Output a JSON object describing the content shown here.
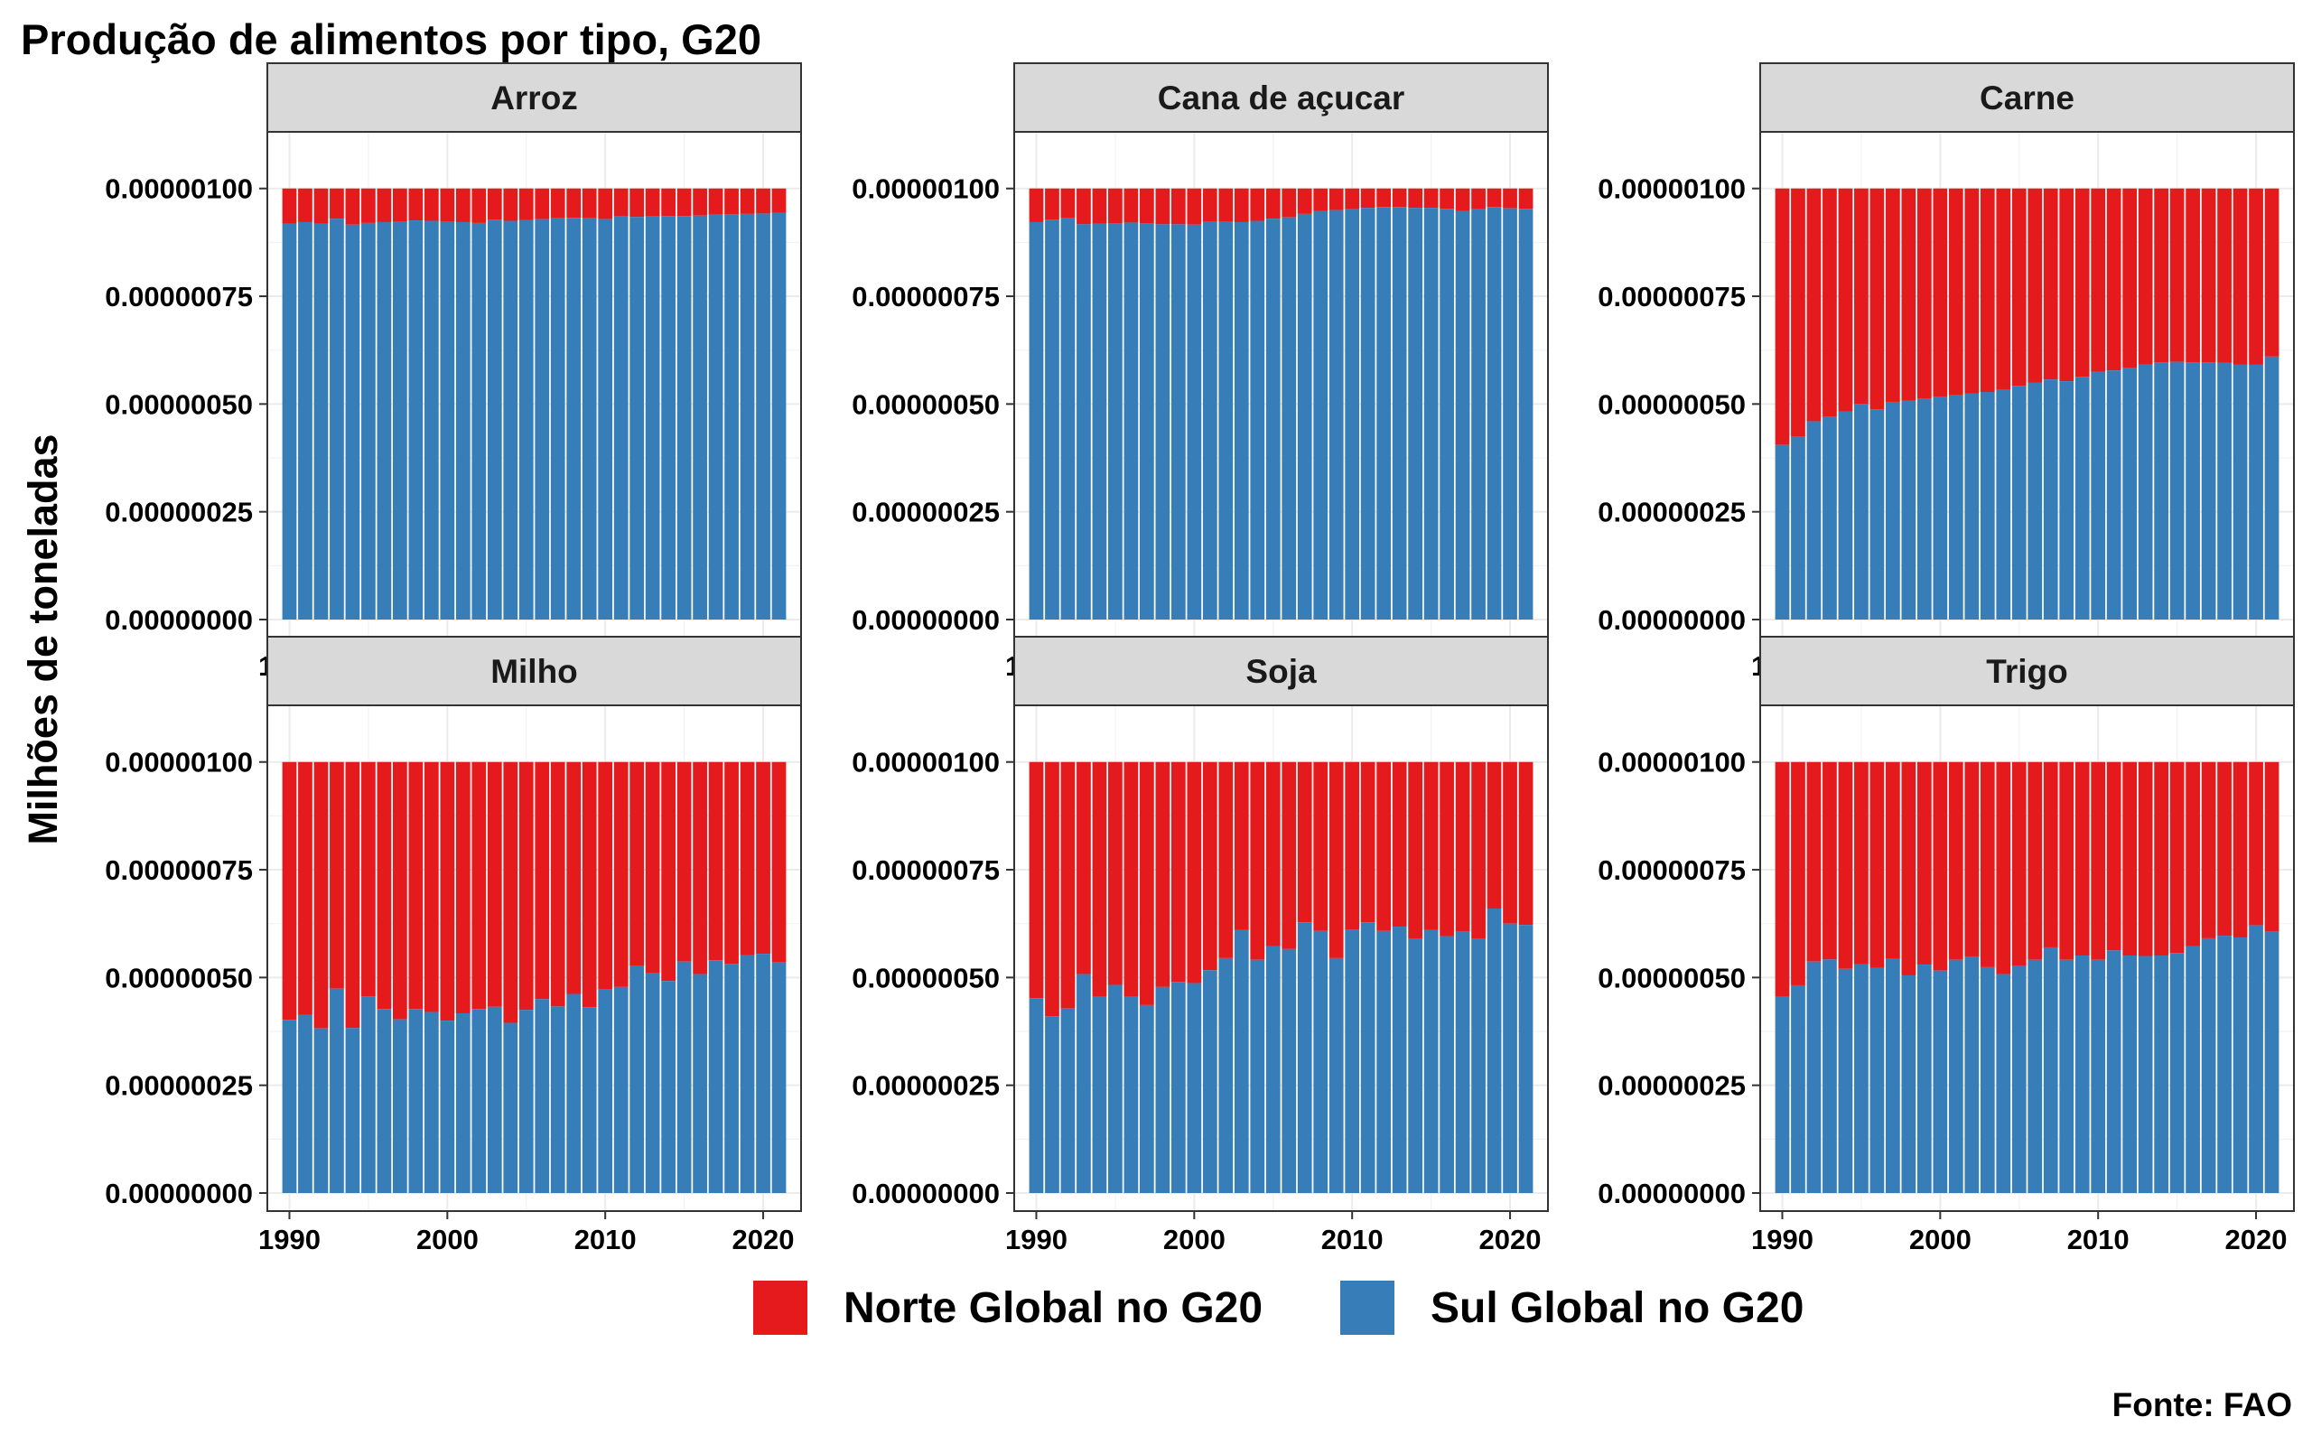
{
  "chart_data": {
    "type": "bar",
    "stacked": true,
    "title": "Produção de alimentos por tipo, G20",
    "ylabel": "Milhões de toneladas",
    "xlabel": "",
    "ylim": [
      0,
      1.1e-06
    ],
    "y_ticks": [
      "0.00000000",
      "0.00000025",
      "0.00000050",
      "0.00000075",
      "0.00000100"
    ],
    "x_ticks": [
      1990,
      2000,
      2010,
      2020
    ],
    "years": [
      1990,
      1991,
      1992,
      1993,
      1994,
      1995,
      1996,
      1997,
      1998,
      1999,
      2000,
      2001,
      2002,
      2003,
      2004,
      2005,
      2006,
      2007,
      2008,
      2009,
      2010,
      2011,
      2012,
      2013,
      2014,
      2015,
      2016,
      2017,
      2018,
      2019,
      2020,
      2021
    ],
    "grid": true,
    "legend_position": "bottom",
    "legend": [
      {
        "label": "Norte Global no G20",
        "color": "#E41A1C"
      },
      {
        "label": "Sul Global no G20",
        "color": "#377EB8"
      }
    ],
    "colors": {
      "norte": "#E41A1C",
      "sul": "#377EB8"
    },
    "note": "Fonte: FAO",
    "panels": [
      {
        "name": "Arroz",
        "total": [
          1e-06,
          1e-06,
          1e-06,
          1e-06,
          1e-06,
          1e-06,
          1e-06,
          1e-06,
          1e-06,
          1e-06,
          1e-06,
          1e-06,
          1e-06,
          1e-06,
          1e-06,
          1e-06,
          1e-06,
          1e-06,
          1e-06,
          1e-06,
          1e-06,
          1e-06,
          1e-06,
          1e-06,
          1e-06,
          1e-06,
          1e-06,
          1e-06,
          1e-06,
          1e-06,
          1e-06,
          1e-06
        ],
        "sul": [
          9.18e-07,
          9.22e-07,
          9.18e-07,
          9.3e-07,
          9.16e-07,
          9.2e-07,
          9.22e-07,
          9.24e-07,
          9.26e-07,
          9.25e-07,
          9.24e-07,
          9.22e-07,
          9.2e-07,
          9.28e-07,
          9.25e-07,
          9.27e-07,
          9.29e-07,
          9.31e-07,
          9.32e-07,
          9.31e-07,
          9.29e-07,
          9.35e-07,
          9.34e-07,
          9.35e-07,
          9.36e-07,
          9.36e-07,
          9.37e-07,
          9.39e-07,
          9.4e-07,
          9.41e-07,
          9.42e-07,
          9.44e-07
        ]
      },
      {
        "name": "Cana de açucar",
        "total": [
          1e-06,
          1e-06,
          1e-06,
          1e-06,
          1e-06,
          1e-06,
          1e-06,
          1e-06,
          1e-06,
          1e-06,
          1e-06,
          1e-06,
          1e-06,
          1e-06,
          1e-06,
          1e-06,
          1e-06,
          1e-06,
          1e-06,
          1e-06,
          1e-06,
          1e-06,
          1e-06,
          1e-06,
          1e-06,
          1e-06,
          1e-06,
          1e-06,
          1e-06,
          1e-06,
          1e-06,
          1e-06
        ],
        "sul": [
          9.22e-07,
          9.28e-07,
          9.31e-07,
          9.17e-07,
          9.18e-07,
          9.19e-07,
          9.21e-07,
          9.19e-07,
          9.17e-07,
          9.17e-07,
          9.16e-07,
          9.24e-07,
          9.24e-07,
          9.22e-07,
          9.25e-07,
          9.3e-07,
          9.33e-07,
          9.41e-07,
          9.48e-07,
          9.5e-07,
          9.52e-07,
          9.55e-07,
          9.57e-07,
          9.57e-07,
          9.55e-07,
          9.55e-07,
          9.53e-07,
          9.48e-07,
          9.52e-07,
          9.57e-07,
          9.54e-07,
          9.53e-07
        ]
      },
      {
        "name": "Carne",
        "total": [
          1e-06,
          1e-06,
          1e-06,
          1e-06,
          1e-06,
          1e-06,
          1e-06,
          1e-06,
          1e-06,
          1e-06,
          1e-06,
          1e-06,
          1e-06,
          1e-06,
          1e-06,
          1e-06,
          1e-06,
          1e-06,
          1e-06,
          1e-06,
          1e-06,
          1e-06,
          1e-06,
          1e-06,
          1e-06,
          1e-06,
          1e-06,
          1e-06,
          1e-06,
          1e-06,
          1e-06,
          1e-06
        ],
        "sul": [
          4.05e-07,
          4.24e-07,
          4.6e-07,
          4.7e-07,
          4.83e-07,
          5e-07,
          4.88e-07,
          5.05e-07,
          5.08e-07,
          5.12e-07,
          5.16e-07,
          5.2e-07,
          5.24e-07,
          5.28e-07,
          5.33e-07,
          5.42e-07,
          5.5e-07,
          5.57e-07,
          5.53e-07,
          5.63e-07,
          5.75e-07,
          5.78e-07,
          5.83e-07,
          5.92e-07,
          5.97e-07,
          5.98e-07,
          5.97e-07,
          5.97e-07,
          5.96e-07,
          5.91e-07,
          5.91e-07,
          6.1e-07
        ]
      },
      {
        "name": "Milho",
        "total": [
          1e-06,
          1e-06,
          1e-06,
          1e-06,
          1e-06,
          1e-06,
          1e-06,
          1e-06,
          1e-06,
          1e-06,
          1e-06,
          1e-06,
          1e-06,
          1e-06,
          1e-06,
          1e-06,
          1e-06,
          1e-06,
          1e-06,
          1e-06,
          1e-06,
          1e-06,
          1e-06,
          1e-06,
          1e-06,
          1e-06,
          1e-06,
          1e-06,
          1e-06,
          1e-06,
          1e-06,
          1e-06
        ],
        "sul": [
          4.02e-07,
          4.13e-07,
          3.82e-07,
          4.74e-07,
          3.83e-07,
          4.56e-07,
          4.27e-07,
          4.03e-07,
          4.27e-07,
          4.2e-07,
          4e-07,
          4.17e-07,
          4.27e-07,
          4.32e-07,
          3.95e-07,
          4.25e-07,
          4.5e-07,
          4.33e-07,
          4.62e-07,
          4.31e-07,
          4.72e-07,
          4.78e-07,
          5.28e-07,
          5.1e-07,
          4.92e-07,
          5.37e-07,
          5.08e-07,
          5.4e-07,
          5.32e-07,
          5.52e-07,
          5.55e-07,
          5.35e-07
        ]
      },
      {
        "name": "Soja",
        "total": [
          1e-06,
          1e-06,
          1e-06,
          1e-06,
          1e-06,
          1e-06,
          1e-06,
          1e-06,
          1e-06,
          1e-06,
          1e-06,
          1e-06,
          1e-06,
          1e-06,
          1e-06,
          1e-06,
          1e-06,
          1e-06,
          1e-06,
          1e-06,
          1e-06,
          1e-06,
          1e-06,
          1e-06,
          1e-06,
          1e-06,
          1e-06,
          1e-06,
          1e-06,
          1e-06,
          1e-06,
          1e-06
        ],
        "sul": [
          4.52e-07,
          4.1e-07,
          4.28e-07,
          5.08e-07,
          4.55e-07,
          4.83e-07,
          4.55e-07,
          4.36e-07,
          4.78e-07,
          4.9e-07,
          4.87e-07,
          5.17e-07,
          5.45e-07,
          6.1e-07,
          5.41e-07,
          5.73e-07,
          5.66e-07,
          6.28e-07,
          6.08e-07,
          5.45e-07,
          6.11e-07,
          6.28e-07,
          6.08e-07,
          6.18e-07,
          5.9e-07,
          6.1e-07,
          5.96e-07,
          6.06e-07,
          5.9e-07,
          6.6e-07,
          6.25e-07,
          6.22e-07
        ]
      },
      {
        "name": "Trigo",
        "total": [
          1e-06,
          1e-06,
          1e-06,
          1e-06,
          1e-06,
          1e-06,
          1e-06,
          1e-06,
          1e-06,
          1e-06,
          1e-06,
          1e-06,
          1e-06,
          1e-06,
          1e-06,
          1e-06,
          1e-06,
          1e-06,
          1e-06,
          1e-06,
          1e-06,
          1e-06,
          1e-06,
          1e-06,
          1e-06,
          1e-06,
          1e-06,
          1e-06,
          1e-06,
          1e-06,
          1e-06,
          1e-06
        ],
        "sul": [
          4.55e-07,
          4.82e-07,
          5.37e-07,
          5.42e-07,
          5.2e-07,
          5.31e-07,
          5.22e-07,
          5.43e-07,
          5.05e-07,
          5.3e-07,
          5.16e-07,
          5.41e-07,
          5.49e-07,
          5.24e-07,
          5.08e-07,
          5.28e-07,
          5.41e-07,
          5.7e-07,
          5.41e-07,
          5.51e-07,
          5.41e-07,
          5.63e-07,
          5.51e-07,
          5.5e-07,
          5.51e-07,
          5.57e-07,
          5.73e-07,
          5.91e-07,
          5.97e-07,
          5.93e-07,
          6.21e-07,
          6.06e-07
        ]
      }
    ]
  }
}
